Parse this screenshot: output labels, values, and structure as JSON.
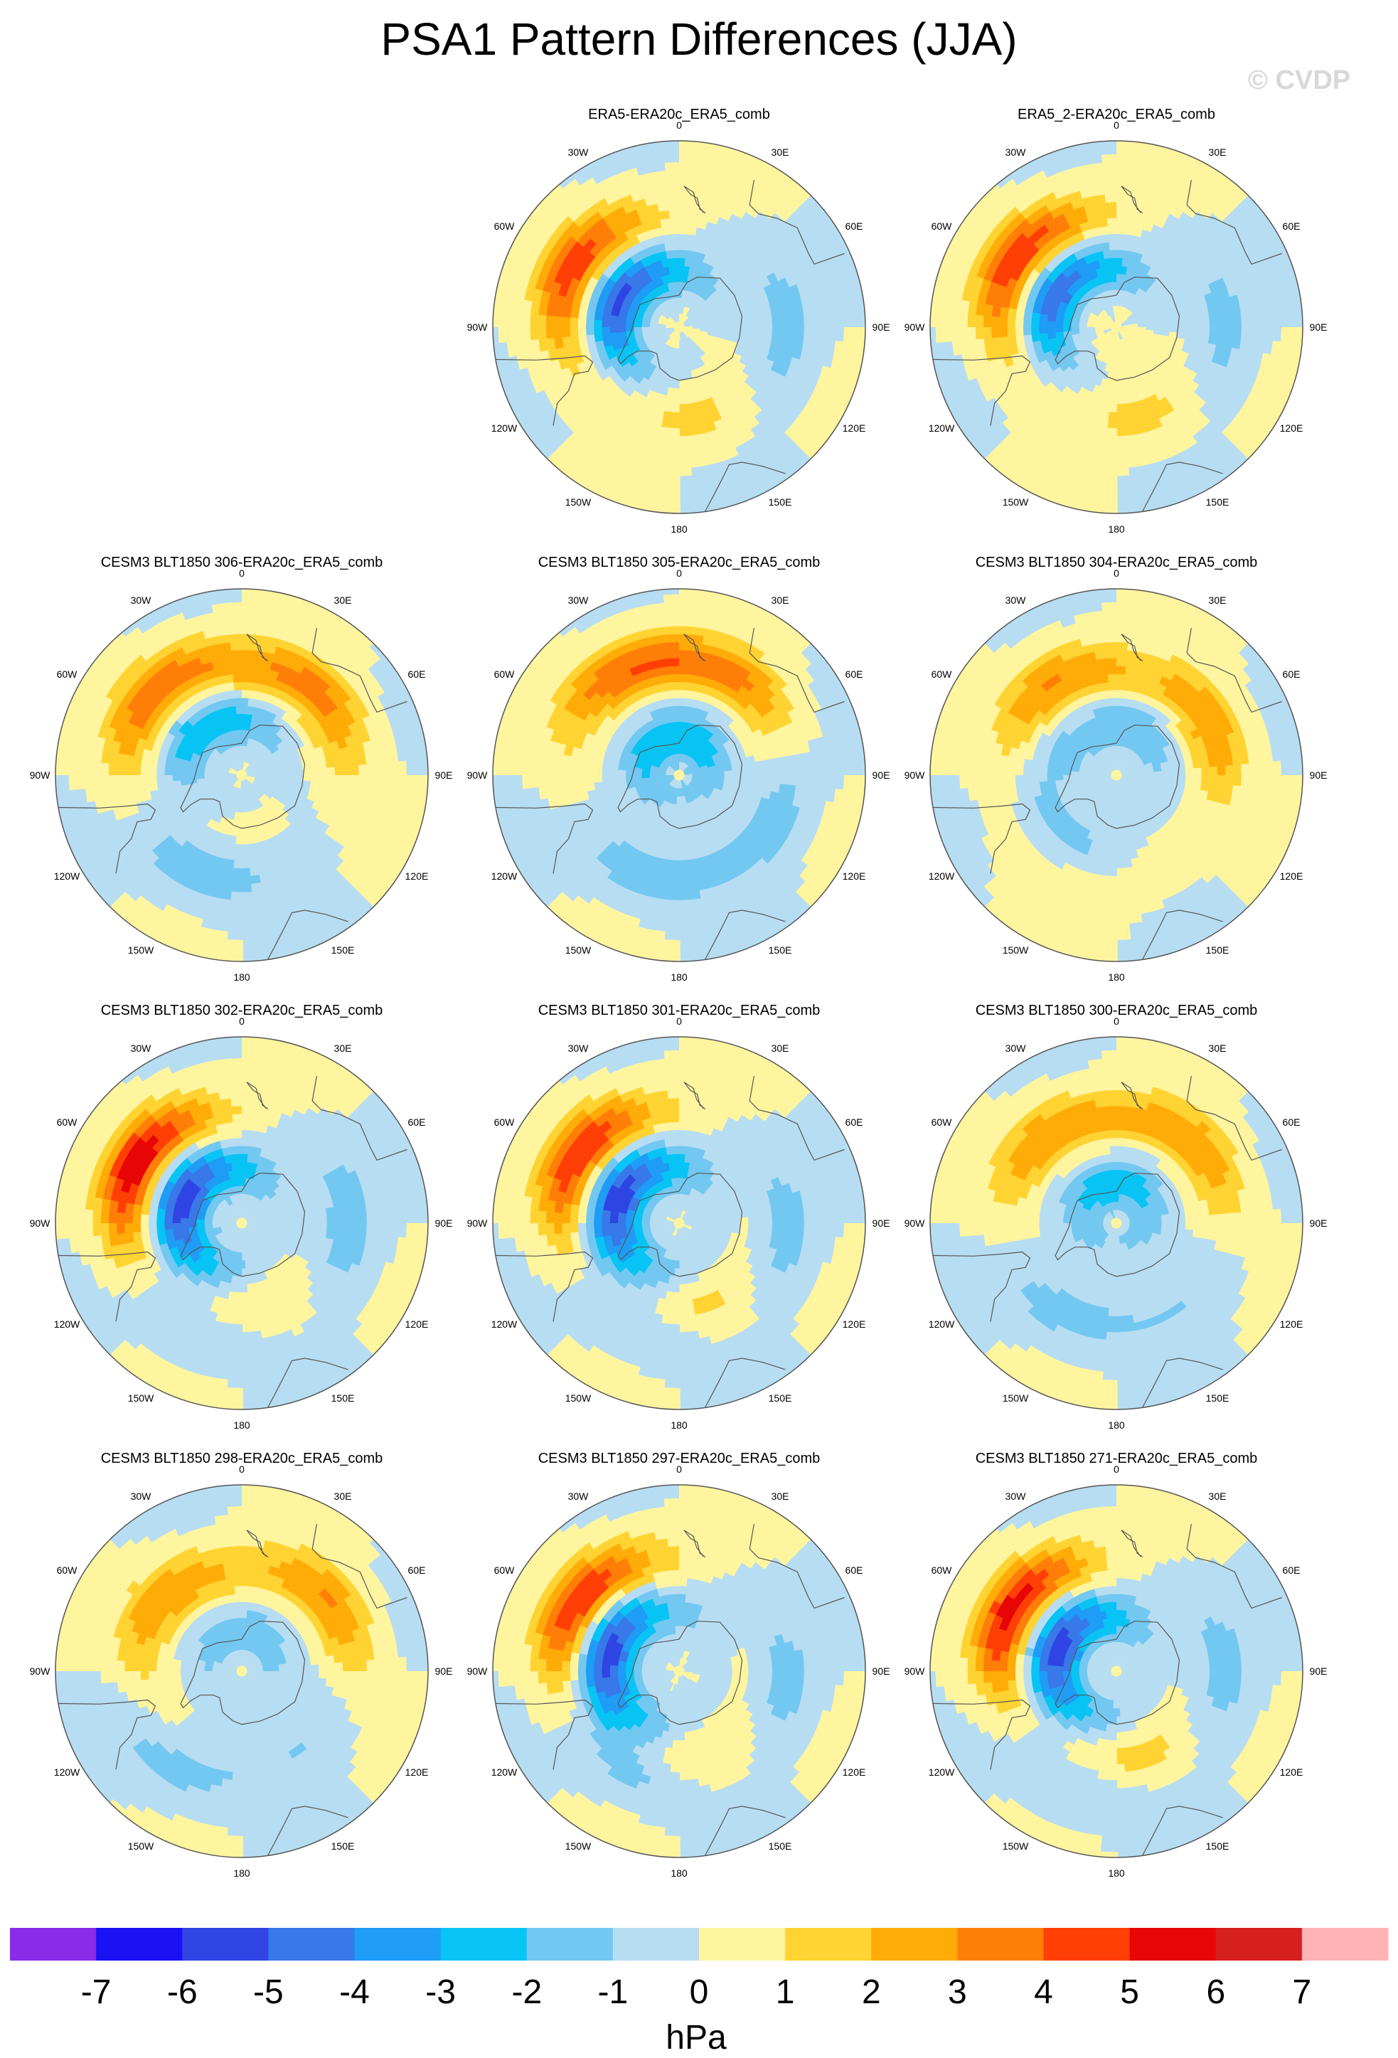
{
  "title": "PSA1 Pattern Differences (JJA)",
  "watermark": "© CVDP",
  "longitude_labels": [
    "0",
    "30E",
    "60E",
    "90E",
    "120E",
    "150E",
    "180",
    "150W",
    "120W",
    "90W",
    "60W",
    "30W"
  ],
  "colors": {
    "map_outline": "#555555",
    "coast": "#555555",
    "land_bg": "#b7ddf2"
  },
  "panels": [
    {
      "id": "p01",
      "title": "ERA5-ERA20c_ERA5_comb",
      "row": 0,
      "col": 1,
      "features": [
        {
          "lon": 250,
          "lat": -66,
          "amp": -5.8
        },
        {
          "lon": 240,
          "lat": -45,
          "amp": 4.7
        },
        {
          "lon": 10,
          "lat": -55,
          "amp": 1.3
        },
        {
          "lon": 90,
          "lat": -50,
          "amp": -1.6
        },
        {
          "lon": 300,
          "lat": -72,
          "amp": 1.2
        }
      ]
    },
    {
      "id": "p02",
      "title": "ERA5_2-ERA20c_ERA5_comb",
      "row": 0,
      "col": 2,
      "features": [
        {
          "lon": 245,
          "lat": -65,
          "amp": -5.2
        },
        {
          "lon": 235,
          "lat": -45,
          "amp": 4.9
        },
        {
          "lon": 20,
          "lat": -55,
          "amp": 1.4
        },
        {
          "lon": 90,
          "lat": -50,
          "amp": -1.5
        },
        {
          "lon": 300,
          "lat": -72,
          "amp": 1.3
        }
      ]
    },
    {
      "id": "p03",
      "title": "CESM3 BLT1850 306-ERA20c_ERA5_comb",
      "row": 1,
      "col": 0,
      "features": [
        {
          "lon": 225,
          "lat": -68,
          "amp": -3.6
        },
        {
          "lon": 225,
          "lat": -45,
          "amp": 3.9
        },
        {
          "lon": 140,
          "lat": -48,
          "amp": 3.3
        },
        {
          "lon": 335,
          "lat": -50,
          "amp": -1.7
        },
        {
          "lon": 280,
          "lat": -70,
          "amp": 1.3
        }
      ]
    },
    {
      "id": "p04",
      "title": "CESM3 BLT1850 305-ERA20c_ERA5_comb",
      "row": 1,
      "col": 1,
      "features": [
        {
          "lon": 190,
          "lat": -75,
          "amp": -3.0
        },
        {
          "lon": 210,
          "lat": -45,
          "amp": 3.5
        },
        {
          "lon": 150,
          "lat": -48,
          "amp": 3.0
        },
        {
          "lon": 345,
          "lat": -50,
          "amp": -1.6
        },
        {
          "lon": 70,
          "lat": -50,
          "amp": -1.5
        }
      ]
    },
    {
      "id": "p05",
      "title": "CESM3 BLT1850 304-ERA20c_ERA5_comb",
      "row": 1,
      "col": 2,
      "features": [
        {
          "lon": 215,
          "lat": -48,
          "amp": 3.0
        },
        {
          "lon": 120,
          "lat": -50,
          "amp": 2.8
        },
        {
          "lon": 170,
          "lat": -70,
          "amp": -1.8
        },
        {
          "lon": 300,
          "lat": -60,
          "amp": -1.5
        },
        {
          "lon": 330,
          "lat": -45,
          "amp": 0.7
        }
      ]
    },
    {
      "id": "p06",
      "title": "CESM3 BLT1850 302-ERA20c_ERA5_comb",
      "row": 2,
      "col": 0,
      "features": [
        {
          "lon": 250,
          "lat": -66,
          "amp": -5.6
        },
        {
          "lon": 240,
          "lat": -45,
          "amp": 5.9
        },
        {
          "lon": 10,
          "lat": -55,
          "amp": 1.5
        },
        {
          "lon": 90,
          "lat": -50,
          "amp": -1.7
        },
        {
          "lon": 340,
          "lat": -48,
          "amp": -1.4
        }
      ]
    },
    {
      "id": "p07",
      "title": "CESM3 BLT1850 301-ERA20c_ERA5_comb",
      "row": 2,
      "col": 1,
      "features": [
        {
          "lon": 250,
          "lat": -65,
          "amp": -5.7
        },
        {
          "lon": 235,
          "lat": -45,
          "amp": 5.1
        },
        {
          "lon": 15,
          "lat": -55,
          "amp": 2.1
        },
        {
          "lon": 85,
          "lat": -50,
          "amp": -1.6
        },
        {
          "lon": 345,
          "lat": -50,
          "amp": -1.7
        }
      ]
    },
    {
      "id": "p08",
      "title": "CESM3 BLT1850 300-ERA20c_ERA5_comb",
      "row": 2,
      "col": 2,
      "features": [
        {
          "lon": 185,
          "lat": -75,
          "amp": -2.6
        },
        {
          "lon": 220,
          "lat": -48,
          "amp": 2.9
        },
        {
          "lon": 135,
          "lat": -48,
          "amp": 2.8
        },
        {
          "lon": 320,
          "lat": -50,
          "amp": -1.3
        },
        {
          "lon": 40,
          "lat": -50,
          "amp": -1.0
        }
      ]
    },
    {
      "id": "p09",
      "title": "CESM3 BLT1850 298-ERA20c_ERA5_comb",
      "row": 3,
      "col": 0,
      "features": [
        {
          "lon": 230,
          "lat": -50,
          "amp": 2.9
        },
        {
          "lon": 130,
          "lat": -48,
          "amp": 3.0
        },
        {
          "lon": 180,
          "lat": -75,
          "amp": -1.6
        },
        {
          "lon": 320,
          "lat": -45,
          "amp": -1.3
        },
        {
          "lon": 40,
          "lat": -55,
          "amp": -1.1
        }
      ]
    },
    {
      "id": "p10",
      "title": "CESM3 BLT1850 297-ERA20c_ERA5_comb",
      "row": 3,
      "col": 1,
      "features": [
        {
          "lon": 258,
          "lat": -62,
          "amp": -5.7
        },
        {
          "lon": 235,
          "lat": -45,
          "amp": 5.3
        },
        {
          "lon": 15,
          "lat": -55,
          "amp": 2.0
        },
        {
          "lon": 80,
          "lat": -50,
          "amp": -1.6
        },
        {
          "lon": 340,
          "lat": -50,
          "amp": -1.8
        }
      ]
    },
    {
      "id": "p11",
      "title": "CESM3 BLT1850 271-ERA20c_ERA5_comb",
      "row": 3,
      "col": 2,
      "features": [
        {
          "lon": 250,
          "lat": -66,
          "amp": -5.5
        },
        {
          "lon": 240,
          "lat": -45,
          "amp": 5.6
        },
        {
          "lon": 15,
          "lat": -55,
          "amp": 1.7
        },
        {
          "lon": 90,
          "lat": -50,
          "amp": -1.6
        },
        {
          "lon": 340,
          "lat": -45,
          "amp": -1.3
        }
      ]
    }
  ],
  "colorbar": {
    "units": "hPa",
    "ticks": [
      "-7",
      "-6",
      "-5",
      "-4",
      "-3",
      "-2",
      "-1",
      "0",
      "1",
      "2",
      "3",
      "4",
      "5",
      "6",
      "7"
    ],
    "levels": [
      -7,
      -6,
      -5,
      -4,
      -3,
      -2,
      -1,
      0,
      1,
      2,
      3,
      4,
      5,
      6,
      7
    ],
    "colors": [
      "#8a2be8",
      "#1a12f2",
      "#2f45e3",
      "#3878e8",
      "#1e9cf6",
      "#08c4f4",
      "#73c8f1",
      "#b7ddf2",
      "#fff59f",
      "#ffd331",
      "#ffab08",
      "#ff7e08",
      "#ff3f06",
      "#e80505",
      "#d61f1f",
      "#ffb3b6"
    ]
  }
}
